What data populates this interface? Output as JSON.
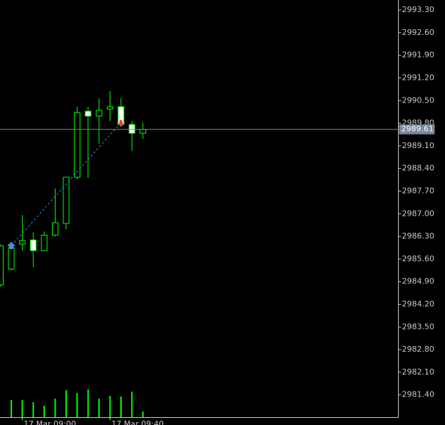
{
  "chart_data": {
    "type": "candlestick",
    "categories": [
      null,
      null,
      "17 Mar 09:00",
      null,
      null,
      null,
      null,
      null,
      null,
      null,
      "17 Mar 09:40",
      null,
      null,
      null
    ],
    "open": [
      2984.8,
      2985.29,
      2986.06,
      2986.19,
      2985.86,
      2986.34,
      2986.7,
      2988.13,
      2990.17,
      2990.02,
      2990.24,
      2990.31,
      2989.76,
      2989.49
    ],
    "high": [
      2986.05,
      2986.12,
      2986.96,
      2986.43,
      2986.45,
      2987.78,
      2988.13,
      2990.31,
      2990.31,
      2990.57,
      2990.79,
      2990.57,
      2989.87,
      2989.82
    ],
    "low": [
      2984.75,
      2985.24,
      2985.86,
      2985.35,
      2985.86,
      2986.3,
      2986.52,
      2988.06,
      2988.11,
      2989.16,
      2989.87,
      2989.69,
      2988.94,
      2989.32
    ],
    "close": [
      2986.01,
      2985.95,
      2986.17,
      2985.86,
      2986.34,
      2986.72,
      2988.13,
      2990.13,
      2990.02,
      2990.2,
      2990.31,
      2989.76,
      2989.49,
      2989.61
    ],
    "volumes": [
      null,
      24,
      24,
      21,
      16,
      26,
      38,
      34,
      39,
      26,
      30,
      29,
      36,
      8
    ],
    "current_price": {
      "value": 2989.61,
      "label": "2989.61"
    },
    "trade": {
      "open": {
        "candle": 1,
        "price": 2986.01
      },
      "close": {
        "candle": 11,
        "price": 2989.82
      }
    },
    "ylim": [
      2980.71,
      2993.61
    ],
    "yticks": [
      {
        "value": 2993.3,
        "label": "2993.30"
      },
      {
        "value": 2992.6,
        "label": "2992.60"
      },
      {
        "value": 2991.9,
        "label": "2991.90"
      },
      {
        "value": 2991.2,
        "label": "2991.20"
      },
      {
        "value": 2990.5,
        "label": "2990.50"
      },
      {
        "value": 2989.8,
        "label": "2989.80"
      },
      {
        "value": 2989.1,
        "label": "2989.10"
      },
      {
        "value": 2988.4,
        "label": "2988.40"
      },
      {
        "value": 2987.7,
        "label": "2987.70"
      },
      {
        "value": 2987.0,
        "label": "2987.00"
      },
      {
        "value": 2986.3,
        "label": "2986.30"
      },
      {
        "value": 2985.6,
        "label": "2985.60"
      },
      {
        "value": 2984.9,
        "label": "2984.90"
      },
      {
        "value": 2984.2,
        "label": "2984.20"
      },
      {
        "value": 2983.5,
        "label": "2983.50"
      },
      {
        "value": 2982.8,
        "label": "2982.80"
      },
      {
        "value": 2982.1,
        "label": "2982.10"
      },
      {
        "value": 2981.4,
        "label": "2981.40"
      }
    ],
    "color": "#00ff00",
    "bear_fill": "#ffffff",
    "bull_fill": "#000000",
    "price_line_color": "#778899",
    "buy_color": "#1e90ff",
    "sell_color": "#ff3030",
    "grid": false
  }
}
